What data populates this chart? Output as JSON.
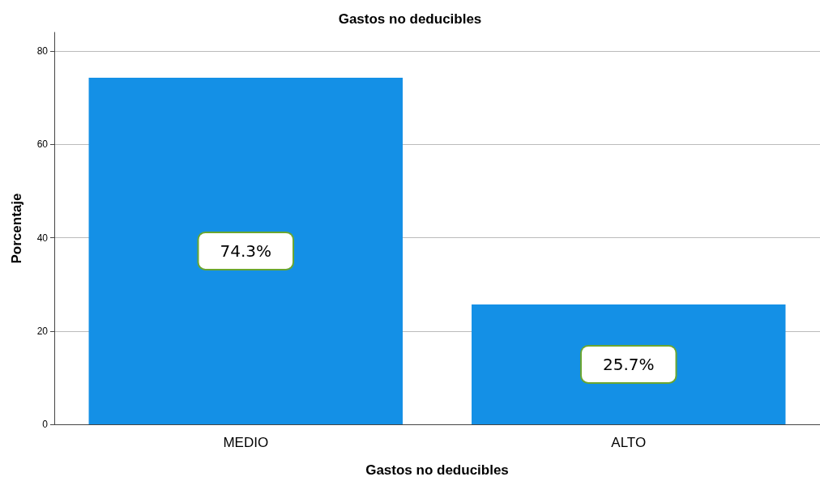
{
  "chart_data": {
    "type": "bar",
    "title": "Gastos no deducibles",
    "xlabel": "Gastos no deducibles",
    "ylabel": "Porcentaje",
    "categories": [
      "MEDIO",
      "ALTO"
    ],
    "values": [
      74.3,
      25.7
    ],
    "value_labels": [
      "74.3%",
      "25.7%"
    ],
    "color": "#1490e6",
    "ylim": [
      0,
      84
    ],
    "yticks": [
      0,
      20,
      40,
      60,
      80
    ],
    "grid": "y"
  }
}
